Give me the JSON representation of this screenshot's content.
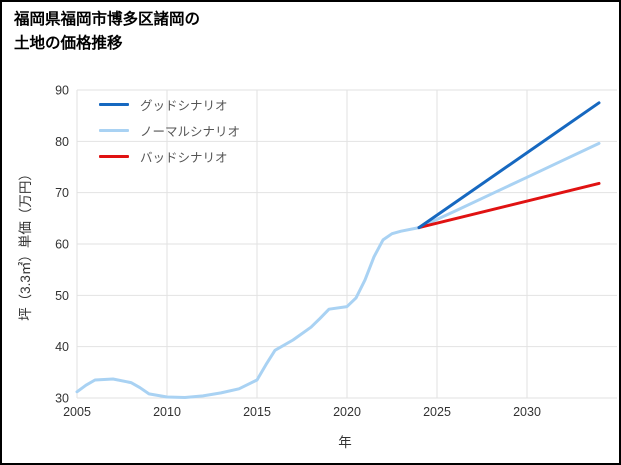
{
  "page": {
    "title_line1": "福岡県福岡市博多区諸岡の",
    "title_line2": "土地の価格推移"
  },
  "colors": {
    "grid": "#e2e2e2",
    "tick_text": "#333333",
    "title_text": "#000000",
    "legend_text": "#555555",
    "border": "#000000",
    "background": "#ffffff"
  },
  "chart_data": {
    "type": "line",
    "title": "福岡県福岡市博多区諸岡の土地の価格推移",
    "xlabel": "年",
    "ylabel": "坪（3.3㎡）単価（万円）",
    "xlim": [
      2005,
      2035
    ],
    "ylim": [
      30,
      90
    ],
    "xticks": [
      2005,
      2010,
      2015,
      2020,
      2025,
      2030
    ],
    "yticks": [
      30,
      40,
      50,
      60,
      70,
      80,
      90
    ],
    "grid": true,
    "legend_position": "upper-left",
    "history": {
      "color": "#a9d2f3",
      "x": [
        2005,
        2005.5,
        2006,
        2007,
        2008,
        2008.5,
        2009,
        2010,
        2011,
        2012,
        2013,
        2014,
        2015,
        2015.5,
        2016,
        2017,
        2018,
        2018.5,
        2019,
        2020,
        2020.5,
        2021,
        2021.5,
        2022,
        2022.5,
        2023,
        2024
      ],
      "values": [
        31.2,
        32.5,
        33.5,
        33.7,
        33.0,
        32.0,
        30.8,
        30.2,
        30.1,
        30.4,
        31.0,
        31.8,
        33.5,
        36.5,
        39.3,
        41.3,
        43.8,
        45.5,
        47.3,
        47.8,
        49.5,
        53.0,
        57.5,
        60.8,
        62.0,
        62.5,
        63.2
      ]
    },
    "series": [
      {
        "name": "グッドシナリオ",
        "color": "#1668c0",
        "x": [
          2024,
          2034
        ],
        "values": [
          63.2,
          87.5
        ]
      },
      {
        "name": "ノーマルシナリオ",
        "color": "#a9d2f3",
        "x": [
          2024,
          2026,
          2028,
          2030,
          2032,
          2034
        ],
        "values": [
          63.2,
          66.4,
          69.7,
          73.0,
          76.3,
          79.6
        ]
      },
      {
        "name": "バッドシナリオ",
        "color": "#e01212",
        "x": [
          2024,
          2034
        ],
        "values": [
          63.2,
          71.8
        ]
      }
    ]
  }
}
